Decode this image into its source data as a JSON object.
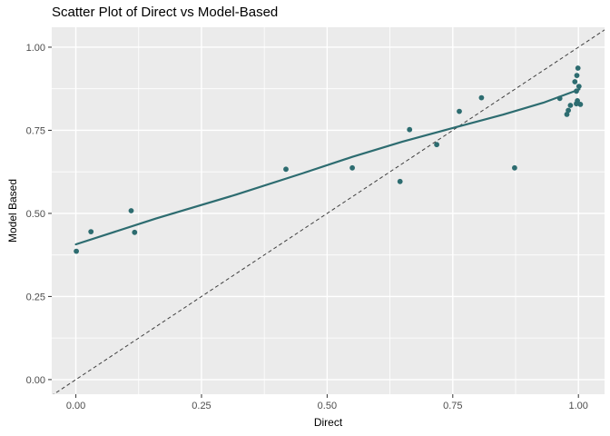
{
  "chart_data": {
    "type": "scatter",
    "title": "Scatter Plot of Direct vs Model-Based",
    "xlabel": "Direct",
    "ylabel": "Model Based",
    "xlim": [
      -0.048,
      1.052
    ],
    "ylim": [
      -0.044,
      1.06
    ],
    "x_ticks": [
      {
        "v": 0.0,
        "label": "0.00"
      },
      {
        "v": 0.25,
        "label": "0.25"
      },
      {
        "v": 0.5,
        "label": "0.50"
      },
      {
        "v": 0.75,
        "label": "0.75"
      },
      {
        "v": 1.0,
        "label": "1.00"
      }
    ],
    "y_ticks": [
      {
        "v": 0.0,
        "label": "0.00"
      },
      {
        "v": 0.25,
        "label": "0.25"
      },
      {
        "v": 0.5,
        "label": "0.50"
      },
      {
        "v": 0.75,
        "label": "0.75"
      },
      {
        "v": 1.0,
        "label": "1.00"
      }
    ],
    "x_minor": [
      0.125,
      0.375,
      0.625,
      0.875
    ],
    "y_minor": [
      0.125,
      0.375,
      0.625,
      0.875
    ],
    "points": [
      [
        0.001,
        0.386
      ],
      [
        0.03,
        0.445
      ],
      [
        0.11,
        0.508
      ],
      [
        0.117,
        0.443
      ],
      [
        0.418,
        0.633
      ],
      [
        0.55,
        0.637
      ],
      [
        0.645,
        0.596
      ],
      [
        0.664,
        0.752
      ],
      [
        0.718,
        0.707
      ],
      [
        0.763,
        0.807
      ],
      [
        0.807,
        0.848
      ],
      [
        0.873,
        0.637
      ],
      [
        0.999,
        0.937
      ],
      [
        0.997,
        0.915
      ],
      [
        0.993,
        0.896
      ],
      [
        1.001,
        0.882
      ],
      [
        0.996,
        0.868
      ],
      [
        0.963,
        0.846
      ],
      [
        0.998,
        0.839
      ],
      [
        0.996,
        0.83
      ],
      [
        1.004,
        0.828
      ],
      [
        0.984,
        0.825
      ],
      [
        0.98,
        0.81
      ],
      [
        0.977,
        0.798
      ]
    ],
    "smooth_line": [
      [
        0.0,
        0.407
      ],
      [
        0.16,
        0.485
      ],
      [
        0.32,
        0.557
      ],
      [
        0.45,
        0.62
      ],
      [
        0.55,
        0.67
      ],
      [
        0.65,
        0.716
      ],
      [
        0.75,
        0.757
      ],
      [
        0.85,
        0.797
      ],
      [
        0.93,
        0.833
      ],
      [
        1.002,
        0.873
      ]
    ],
    "identity_line": {
      "x1": -0.06,
      "y1": -0.06,
      "x2": 1.08,
      "y2": 1.08,
      "style": "dashed"
    },
    "grid": "on",
    "legend": null,
    "colors": {
      "point": "#2d6c70",
      "smooth_line": "#2d6c70",
      "identity_line": "#3f3f3f",
      "panel_bg": "#ebebeb",
      "grid": "#ffffff",
      "tick_label": "#4d4d4d",
      "tick_mark": "#333333",
      "title": "#000000",
      "axis_title": "#000000",
      "plot_bg": "#ffffff"
    }
  }
}
